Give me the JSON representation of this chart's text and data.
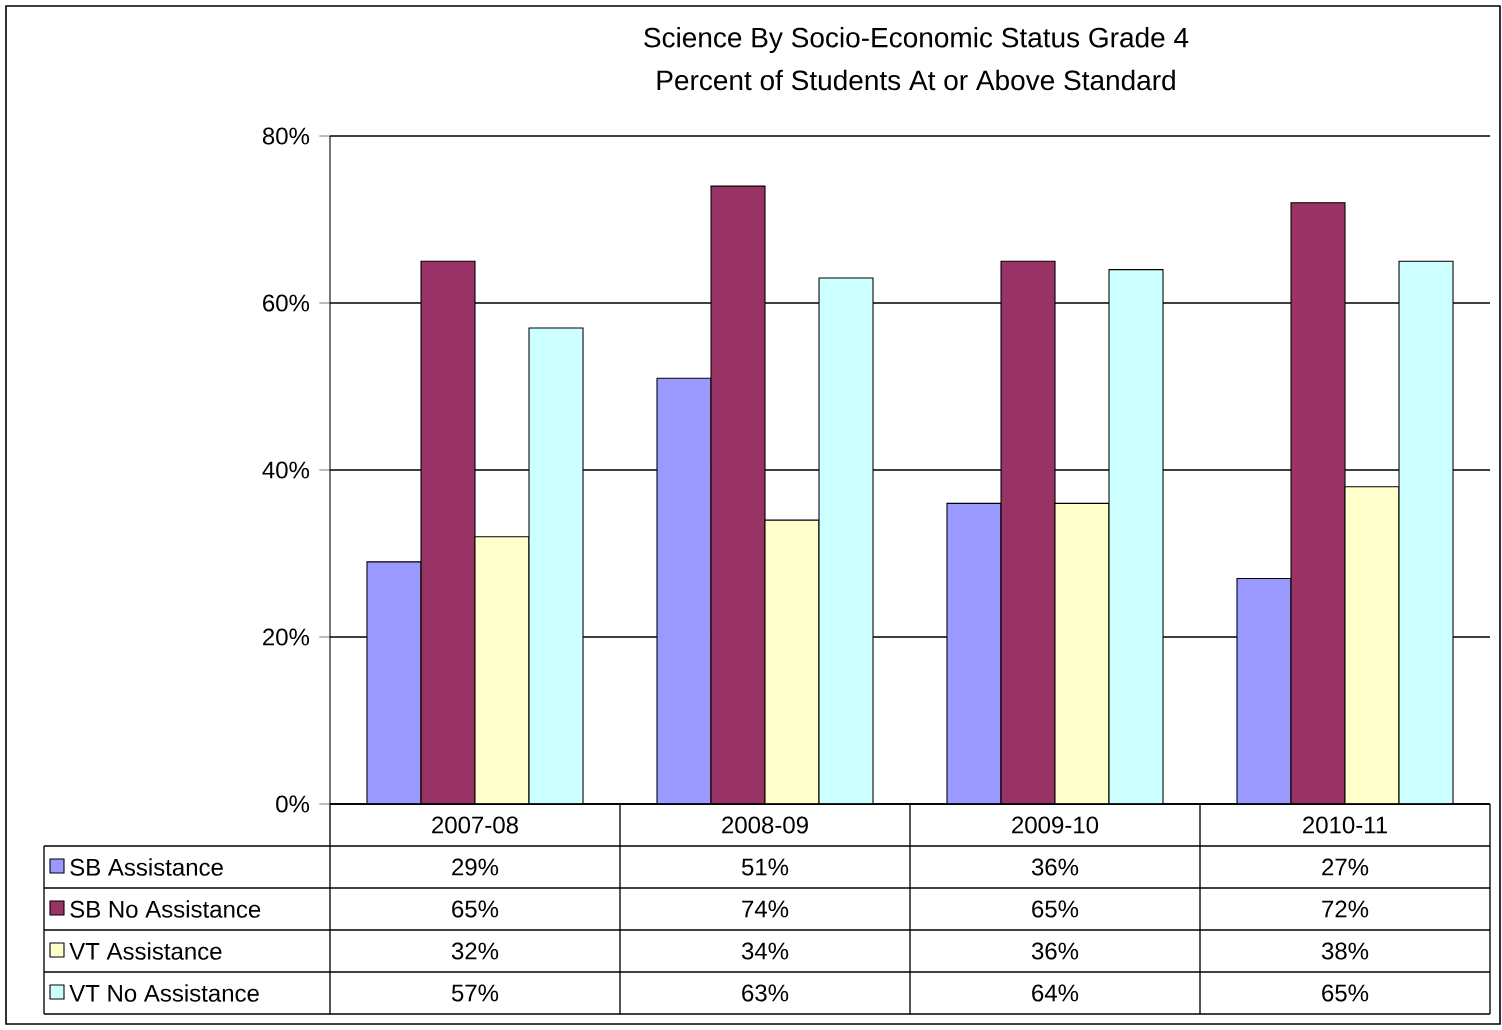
{
  "chart_data": {
    "type": "bar",
    "title": "Science By Socio-Economic Status Grade 4",
    "subtitle": "Percent of Students At or Above Standard",
    "categories": [
      "2007-08",
      "2008-09",
      "2009-10",
      "2010-11"
    ],
    "series": [
      {
        "name": "SB Assistance",
        "color": "#9999ff",
        "values": [
          29,
          51,
          36,
          27
        ],
        "value_labels": [
          "29%",
          "51%",
          "36%",
          "27%"
        ]
      },
      {
        "name": "SB No Assistance",
        "color": "#993366",
        "values": [
          65,
          74,
          65,
          72
        ],
        "value_labels": [
          "65%",
          "74%",
          "65%",
          "72%"
        ]
      },
      {
        "name": "VT Assistance",
        "color": "#ffffcc",
        "values": [
          32,
          34,
          36,
          38
        ],
        "value_labels": [
          "32%",
          "34%",
          "36%",
          "38%"
        ]
      },
      {
        "name": "VT No Assistance",
        "color": "#ccffff",
        "values": [
          57,
          63,
          64,
          65
        ],
        "value_labels": [
          "57%",
          "63%",
          "64%",
          "65%"
        ]
      }
    ],
    "ylim": [
      0,
      80
    ],
    "yticks": [
      {
        "value": 0,
        "label": "0%"
      },
      {
        "value": 20,
        "label": "20%"
      },
      {
        "value": 40,
        "label": "40%"
      },
      {
        "value": 60,
        "label": "60%"
      },
      {
        "value": 80,
        "label": "80%"
      }
    ],
    "grid": "y",
    "legend": "bottom left"
  }
}
